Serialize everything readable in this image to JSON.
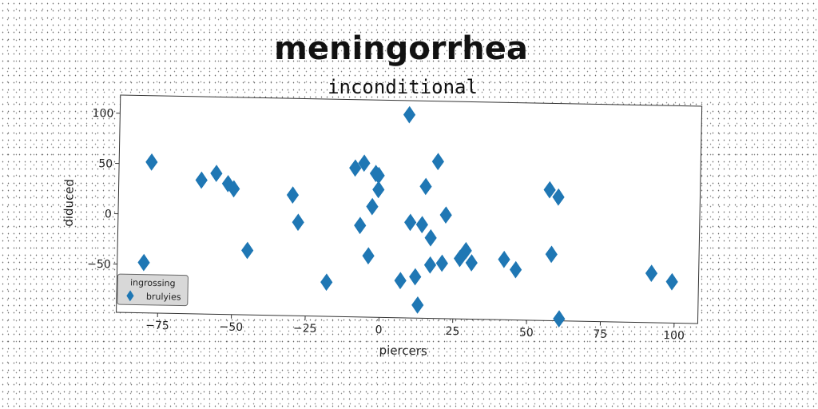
{
  "chart_data": {
    "type": "scatter",
    "title": "meningorrhea",
    "subtitle": "inconditional",
    "xlabel": "piercers",
    "ylabel": "diduced",
    "xlim": [
      -89,
      108
    ],
    "ylim": [
      -98,
      118
    ],
    "xticks": [
      -75,
      -50,
      -25,
      0,
      25,
      50,
      75,
      100
    ],
    "yticks": [
      -50,
      0,
      50,
      100
    ],
    "grid": false,
    "legend": {
      "title": "ingrossing",
      "position": "bottom-left"
    },
    "series": [
      {
        "name": "brulyies",
        "marker": "diamond",
        "color": "#1f77b4",
        "points": [
          [
            -80,
            -48
          ],
          [
            -78,
            52
          ],
          [
            -61,
            35
          ],
          [
            -56,
            42
          ],
          [
            -52,
            32
          ],
          [
            -50,
            27
          ],
          [
            -45,
            -34
          ],
          [
            -30,
            22
          ],
          [
            -28,
            -5
          ],
          [
            -18,
            -64
          ],
          [
            -9,
            50
          ],
          [
            -7,
            -7
          ],
          [
            -6,
            55
          ],
          [
            -4,
            -37
          ],
          [
            -3,
            12
          ],
          [
            -2,
            45
          ],
          [
            -1,
            29
          ],
          [
            -1,
            43
          ],
          [
            7,
            -61
          ],
          [
            9,
            104
          ],
          [
            10,
            -3
          ],
          [
            12,
            -57
          ],
          [
            13,
            -85
          ],
          [
            14,
            -5
          ],
          [
            15,
            33
          ],
          [
            17,
            -18
          ],
          [
            17,
            -45
          ],
          [
            19,
            58
          ],
          [
            21,
            -43
          ],
          [
            22,
            5
          ],
          [
            27,
            -38
          ],
          [
            29,
            -30
          ],
          [
            31,
            -42
          ],
          [
            42,
            -38
          ],
          [
            46,
            -48
          ],
          [
            57,
            32
          ],
          [
            58,
            -32
          ],
          [
            60,
            25
          ],
          [
            61,
            -96
          ],
          [
            92,
            -49
          ],
          [
            99,
            -57
          ]
        ]
      }
    ]
  }
}
